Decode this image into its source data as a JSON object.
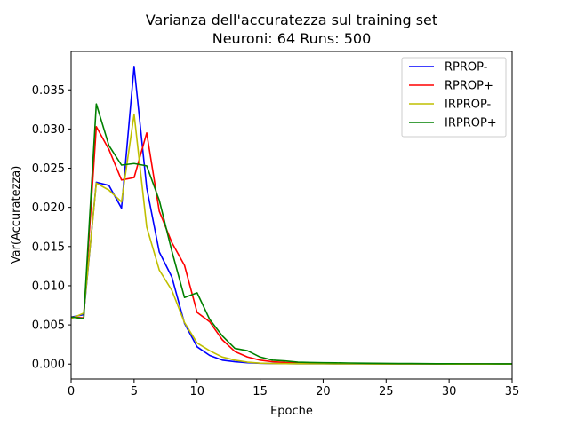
{
  "chart_data": {
    "type": "line",
    "title_line1": "Varianza dell'accuratezza sul training set",
    "title_line2": "Neuroni: 64 Runs: 500",
    "xlabel": "Epoche",
    "ylabel": "Var(Accuratezza)",
    "xlim": [
      0,
      35
    ],
    "ylim": [
      -0.0019,
      0.0399
    ],
    "xticks": [
      0,
      5,
      10,
      15,
      20,
      25,
      30,
      35
    ],
    "xtick_labels": [
      "0",
      "5",
      "10",
      "15",
      "20",
      "25",
      "30",
      "35"
    ],
    "yticks": [
      0.0,
      0.005,
      0.01,
      0.015,
      0.02,
      0.025,
      0.03,
      0.035
    ],
    "ytick_labels": [
      "0.000",
      "0.005",
      "0.010",
      "0.015",
      "0.020",
      "0.025",
      "0.030",
      "0.035"
    ],
    "grid": false,
    "legend_position": "top-right",
    "x": [
      0,
      1,
      2,
      3,
      4,
      5,
      6,
      7,
      8,
      9,
      10,
      11,
      12,
      13,
      14,
      15,
      16,
      17,
      18,
      19,
      20,
      21,
      22,
      23,
      24,
      25,
      26,
      27,
      28,
      29,
      30,
      31,
      32,
      33,
      34,
      35
    ],
    "series": [
      {
        "name": "RPROP-",
        "color": "#0000ff",
        "values": [
          0.006,
          0.0063,
          0.0232,
          0.0228,
          0.0199,
          0.038,
          0.0225,
          0.0143,
          0.0111,
          0.0052,
          0.0022,
          0.0011,
          0.0005,
          0.0003,
          0.00018,
          0.0001,
          8e-05,
          6e-05,
          5e-05,
          4e-05,
          4e-05,
          3e-05,
          3e-05,
          3e-05,
          2e-05,
          2e-05,
          2e-05,
          2e-05,
          2e-05,
          2e-05,
          2e-05,
          1e-05,
          1e-05,
          1e-05,
          1e-05,
          1e-05
        ]
      },
      {
        "name": "RPROP+",
        "color": "#ff0000",
        "values": [
          0.006,
          0.0059,
          0.0303,
          0.0274,
          0.0235,
          0.0238,
          0.0295,
          0.0195,
          0.0155,
          0.0126,
          0.0066,
          0.0054,
          0.0031,
          0.0016,
          0.0009,
          0.0005,
          0.0003,
          0.0002,
          0.00015,
          0.00012,
          0.0001,
          9e-05,
          8e-05,
          7e-05,
          6e-05,
          5e-05,
          5e-05,
          4e-05,
          4e-05,
          3e-05,
          3e-05,
          3e-05,
          3e-05,
          2e-05,
          2e-05,
          2e-05
        ]
      },
      {
        "name": "IRPROP-",
        "color": "#bfbf00",
        "values": [
          0.0058,
          0.0065,
          0.0231,
          0.0222,
          0.0207,
          0.0319,
          0.0175,
          0.012,
          0.0094,
          0.0053,
          0.0027,
          0.0017,
          0.0009,
          0.0005,
          0.00025,
          0.00012,
          8e-05,
          6e-05,
          5e-05,
          4e-05,
          4e-05,
          3e-05,
          3e-05,
          3e-05,
          2e-05,
          2e-05,
          2e-05,
          2e-05,
          2e-05,
          2e-05,
          1e-05,
          1e-05,
          1e-05,
          1e-05,
          1e-05,
          1e-05
        ]
      },
      {
        "name": "IRPROP+",
        "color": "#008000",
        "values": [
          0.006,
          0.0058,
          0.0332,
          0.0279,
          0.0254,
          0.0256,
          0.0253,
          0.0209,
          0.0144,
          0.0085,
          0.0091,
          0.0057,
          0.0036,
          0.002,
          0.0017,
          0.0009,
          0.0005,
          0.0004,
          0.00025,
          0.0002,
          0.00018,
          0.00016,
          0.00014,
          0.00012,
          0.0001,
          9e-05,
          8e-05,
          7e-05,
          6e-05,
          5e-05,
          5e-05,
          4e-05,
          4e-05,
          4e-05,
          3e-05,
          3e-05
        ]
      }
    ]
  }
}
